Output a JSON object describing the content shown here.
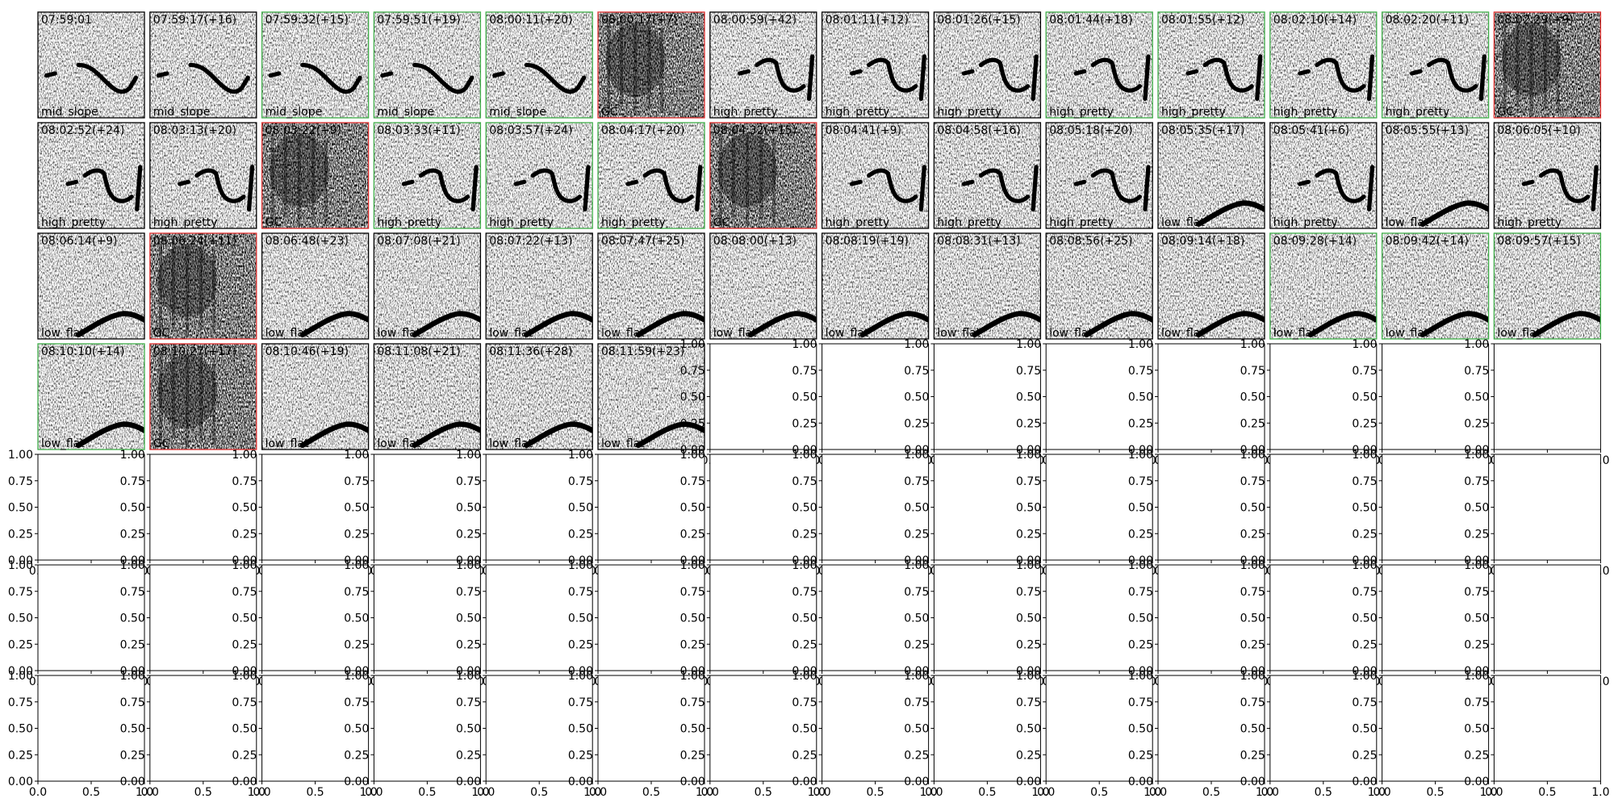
{
  "panels": [
    {
      "title": "07:59:01",
      "label": "mid_slope",
      "border": "#000000"
    },
    {
      "title": "07:59:17(+16)",
      "label": "mid_slope",
      "border": "#000000"
    },
    {
      "title": "07:59:32(+15)",
      "label": "mid_slope",
      "border": "#3fae49"
    },
    {
      "title": "07:59:51(+19)",
      "label": "mid_slope",
      "border": "#3fae49"
    },
    {
      "title": "08:00:11(+20)",
      "label": "mid_slope",
      "border": "#3fae49"
    },
    {
      "title": "08:00:17(+7)",
      "label": "GC",
      "border": "#e0312f"
    },
    {
      "title": "08:00:59(+42)",
      "label": "high_pretty",
      "border": "#000000"
    },
    {
      "title": "08:01:11(+12)",
      "label": "high_pretty",
      "border": "#000000"
    },
    {
      "title": "08:01:26(+15)",
      "label": "high_pretty",
      "border": "#000000"
    },
    {
      "title": "08:01:44(+18)",
      "label": "high_pretty",
      "border": "#3fae49"
    },
    {
      "title": "08:01:55(+12)",
      "label": "high_pretty",
      "border": "#3fae49"
    },
    {
      "title": "08:02:10(+14)",
      "label": "high_pretty",
      "border": "#3fae49"
    },
    {
      "title": "08:02:20(+11)",
      "label": "high_pretty",
      "border": "#3fae49"
    },
    {
      "title": "08:02:29(+9)",
      "label": "GC",
      "border": "#e0312f"
    },
    {
      "title": "08:02:52(+24)",
      "label": "high_pretty",
      "border": "#000000"
    },
    {
      "title": "08:03:13(+20)",
      "label": "high_pretty",
      "border": "#000000"
    },
    {
      "title": "08:03:22(+9)",
      "label": "GC",
      "border": "#e0312f"
    },
    {
      "title": "08:03:33(+11)",
      "label": "high_pretty",
      "border": "#3fae49"
    },
    {
      "title": "08:03:57(+24)",
      "label": "high_pretty",
      "border": "#3fae49"
    },
    {
      "title": "08:04:17(+20)",
      "label": "high_pretty",
      "border": "#3fae49"
    },
    {
      "title": "08:04:32(+15)",
      "label": "GC",
      "border": "#e0312f"
    },
    {
      "title": "08:04:41(+9)",
      "label": "high_pretty",
      "border": "#000000"
    },
    {
      "title": "08:04:58(+16)",
      "label": "high_pretty",
      "border": "#000000"
    },
    {
      "title": "08:05:18(+20)",
      "label": "high_pretty",
      "border": "#000000"
    },
    {
      "title": "08:05:35(+17)",
      "label": "low_flat",
      "border": "#000000"
    },
    {
      "title": "08:05:41(+6)",
      "label": "high_pretty",
      "border": "#000000"
    },
    {
      "title": "08:05:55(+13)",
      "label": "low_flat",
      "border": "#000000"
    },
    {
      "title": "08:06:05(+10)",
      "label": "high_pretty",
      "border": "#000000"
    },
    {
      "title": "08:06:14(+9)",
      "label": "low_flat",
      "border": "#000000"
    },
    {
      "title": "08:06:24(+11)",
      "label": "GC",
      "border": "#e0312f"
    },
    {
      "title": "08:06:48(+23)",
      "label": "low_flat",
      "border": "#000000"
    },
    {
      "title": "08:07:08(+21)",
      "label": "low_flat",
      "border": "#000000"
    },
    {
      "title": "08:07:22(+13)",
      "label": "low_flat",
      "border": "#000000"
    },
    {
      "title": "08:07:47(+25)",
      "label": "low_flat",
      "border": "#000000"
    },
    {
      "title": "08:08:00(+13)",
      "label": "low_flat",
      "border": "#000000"
    },
    {
      "title": "08:08:19(+19)",
      "label": "low_flat",
      "border": "#000000"
    },
    {
      "title": "08:08:31(+13)",
      "label": "low_flat",
      "border": "#000000"
    },
    {
      "title": "08:08:56(+25)",
      "label": "low_flat",
      "border": "#000000"
    },
    {
      "title": "08:09:14(+18)",
      "label": "low_flat",
      "border": "#000000"
    },
    {
      "title": "08:09:28(+14)",
      "label": "low_flat",
      "border": "#3fae49"
    },
    {
      "title": "08:09:42(+14)",
      "label": "low_flat",
      "border": "#3fae49"
    },
    {
      "title": "08:09:57(+15)",
      "label": "low_flat",
      "border": "#3fae49"
    },
    {
      "title": "08:10:10(+14)",
      "label": "low_flat",
      "border": "#3fae49"
    },
    {
      "title": "08:10:27(+17)",
      "label": "GC",
      "border": "#e0312f"
    },
    {
      "title": "08:10:46(+19)",
      "label": "low_flat",
      "border": "#000000"
    },
    {
      "title": "08:11:08(+21)",
      "label": "low_flat",
      "border": "#000000"
    },
    {
      "title": "08:11:36(+28)",
      "label": "low_flat",
      "border": "#000000"
    },
    {
      "title": "08:11:59(+23)",
      "label": "low_flat",
      "border": "#000000"
    }
  ],
  "empty_axes": {
    "yticks": [
      "0.00",
      "0.25",
      "0.50",
      "0.75",
      "1.00"
    ],
    "xticks": [
      "0.0",
      "0.5",
      "1.0"
    ]
  }
}
